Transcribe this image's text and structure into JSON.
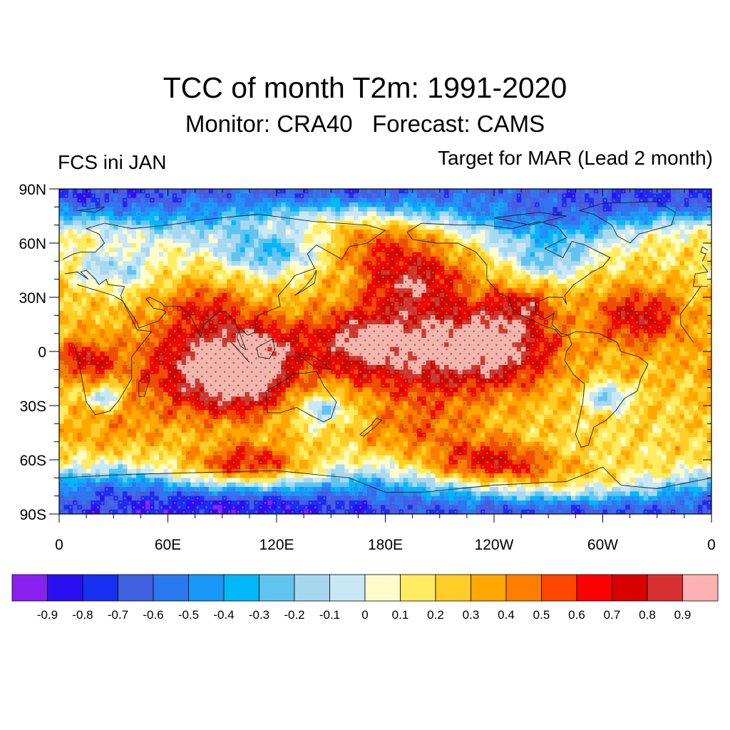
{
  "title": "TCC of month T2m: 1991-2020",
  "subtitle": "Monitor: CRA40   Forecast: CAMS",
  "left_label": "FCS ini JAN",
  "right_label": "Target for MAR (Lead 2 month)",
  "chart_data": {
    "type": "heatmap",
    "variable": "Temporal correlation coefficient (TCC) of monthly 2m temperature",
    "period": "1991-2020",
    "lat_range": [
      -90,
      90
    ],
    "lon_range": [
      0,
      360
    ],
    "lat_ticks": [
      {
        "value": 90,
        "label": "90N"
      },
      {
        "value": 60,
        "label": "60N"
      },
      {
        "value": 30,
        "label": "30N"
      },
      {
        "value": 0,
        "label": "0"
      },
      {
        "value": -30,
        "label": "30S"
      },
      {
        "value": -60,
        "label": "60S"
      },
      {
        "value": -90,
        "label": "90S"
      }
    ],
    "lon_ticks": [
      {
        "value": 0,
        "label": "0"
      },
      {
        "value": 60,
        "label": "60E"
      },
      {
        "value": 120,
        "label": "120E"
      },
      {
        "value": 180,
        "label": "180E"
      },
      {
        "value": 240,
        "label": "120W"
      },
      {
        "value": 300,
        "label": "60W"
      },
      {
        "value": 360,
        "label": "0"
      }
    ],
    "colorbar_labels": [
      "-0.9",
      "-0.8",
      "-0.7",
      "-0.6",
      "-0.5",
      "-0.4",
      "-0.3",
      "-0.2",
      "-0.1",
      "0",
      "0.1",
      "0.2",
      "0.3",
      "0.4",
      "0.5",
      "0.6",
      "0.7",
      "0.8",
      "0.9"
    ],
    "colorbar_colors": [
      "#8a20f0",
      "#2a10f0",
      "#1830f0",
      "#4060e0",
      "#2a78f0",
      "#1898f8",
      "#00b8f8",
      "#60c4f0",
      "#a8d8f0",
      "#c8e8f8",
      "#fffccc",
      "#ffec60",
      "#ffcc28",
      "#ffa800",
      "#ff7e00",
      "#ff4600",
      "#ff0000",
      "#d80000",
      "#d83030",
      "#ffb0b0"
    ],
    "anomaly_features": [
      {
        "lat": 2,
        "lon": 205,
        "value": 0.8,
        "spread": 22
      },
      {
        "lat": 5,
        "lon": 165,
        "value": 0.7,
        "spread": 14
      },
      {
        "lat": 3,
        "lon": 245,
        "value": 0.75,
        "spread": 16
      },
      {
        "lat": -8,
        "lon": 80,
        "value": 0.75,
        "spread": 20
      },
      {
        "lat": 0,
        "lon": 110,
        "value": 0.7,
        "spread": 14
      },
      {
        "lat": 40,
        "lon": 195,
        "value": 0.75,
        "spread": 12
      },
      {
        "lat": 20,
        "lon": 320,
        "value": 0.7,
        "spread": 12
      },
      {
        "lat": -20,
        "lon": 100,
        "value": 0.6,
        "spread": 14
      },
      {
        "lat": -62,
        "lon": 105,
        "value": 0.7,
        "spread": 9
      },
      {
        "lat": -62,
        "lon": 240,
        "value": 0.7,
        "spread": 10
      },
      {
        "lat": -5,
        "lon": 15,
        "value": 0.65,
        "spread": 8
      },
      {
        "lat": 25,
        "lon": 80,
        "value": 0.5,
        "spread": 10
      },
      {
        "lat": 60,
        "lon": 180,
        "value": 0.5,
        "spread": 10
      },
      {
        "lat": 25,
        "lon": 255,
        "value": 0.55,
        "spread": 8
      },
      {
        "lat": -45,
        "lon": 200,
        "value": 0.45,
        "spread": 14
      },
      {
        "lat": -45,
        "lon": 30,
        "value": 0.35,
        "spread": 14
      },
      {
        "lat": 55,
        "lon": 115,
        "value": -0.3,
        "spread": 10
      },
      {
        "lat": 75,
        "lon": 270,
        "value": -0.45,
        "spread": 14
      },
      {
        "lat": 80,
        "lon": 60,
        "value": -0.3,
        "spread": 14
      },
      {
        "lat": -78,
        "lon": 30,
        "value": -0.45,
        "spread": 12
      },
      {
        "lat": -80,
        "lon": 170,
        "value": -0.4,
        "spread": 14
      },
      {
        "lat": -25,
        "lon": 303,
        "value": -0.3,
        "spread": 6
      },
      {
        "lat": -25,
        "lon": 25,
        "value": -0.3,
        "spread": 5
      },
      {
        "lat": -32,
        "lon": 145,
        "value": -0.25,
        "spread": 7
      },
      {
        "lat": 50,
        "lon": 270,
        "value": -0.15,
        "spread": 9
      },
      {
        "lat": 45,
        "lon": 30,
        "value": -0.15,
        "spread": 9
      }
    ]
  }
}
